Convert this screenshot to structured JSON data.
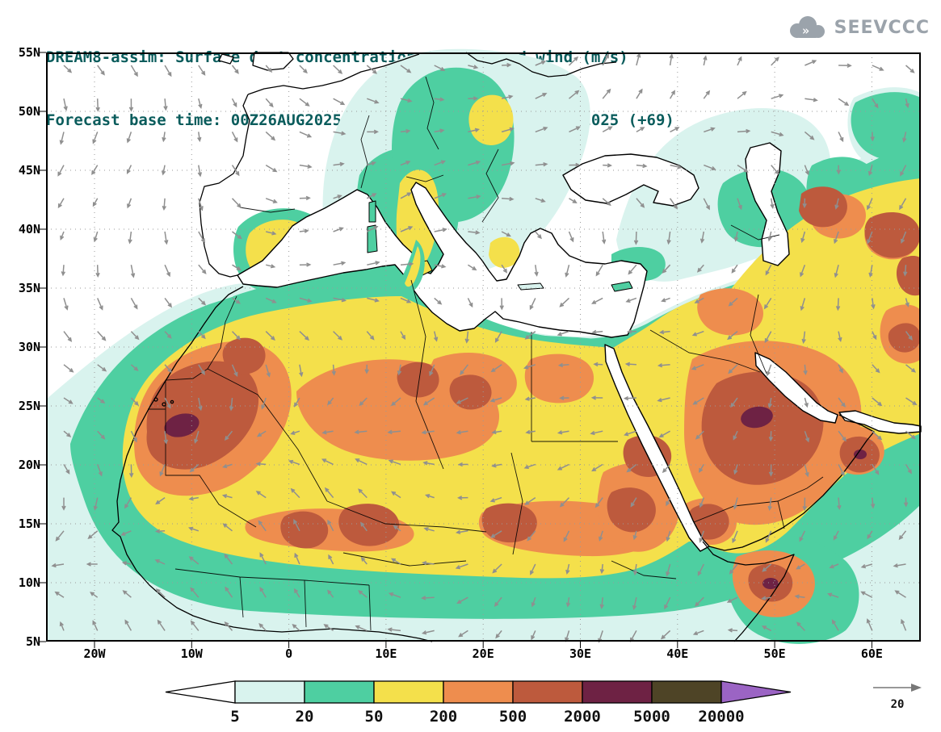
{
  "header": {
    "title_line1": "DREAM8-assim: Surface dust concentration (μg/m³) and wind (m/s)",
    "title_line2": "Forecast base time: 00Z26AUG2025      valid time: 21Z28AUG2025 (+69)",
    "title_color": "#0a5c5c",
    "logo_text": "SEEVCCC",
    "logo_color": "#9ba3ab"
  },
  "chart_data": {
    "type": "heatmap",
    "title": "DREAM8-assim: Surface dust concentration (μg/m³) and wind (m/s)",
    "variable": "Surface dust concentration",
    "units": "μg/m³",
    "wind_units": "m/s",
    "forecast_base_time": "00Z26AUG2025",
    "valid_time": "21Z28AUG2025",
    "forecast_hour": "+69",
    "x_ticks": [
      "20W",
      "10W",
      "0",
      "10E",
      "20E",
      "30E",
      "40E",
      "50E",
      "60E"
    ],
    "y_ticks": [
      "55N",
      "50N",
      "45N",
      "40N",
      "35N",
      "30N",
      "25N",
      "20N",
      "15N",
      "10N",
      "5N"
    ],
    "lon_range": [
      -25,
      65
    ],
    "lat_range": [
      5,
      55
    ],
    "contour_levels": [
      5,
      20,
      50,
      200,
      500,
      2000,
      5000,
      20000
    ],
    "level_colors": [
      "#ffffff",
      "#d9f3ee",
      "#4ecfa1",
      "#f4e04b",
      "#ee8d4e",
      "#bd5a3d",
      "#6e2244",
      "#4e4426",
      "#9b64c4"
    ],
    "wind_reference_value": 20,
    "legend_position": "bottom",
    "grid": "dotted",
    "map_region": "North Africa, Europe, Middle East"
  },
  "colorbar": {
    "labels": [
      "5",
      "20",
      "50",
      "200",
      "500",
      "2000",
      "5000",
      "20000"
    ]
  },
  "wind_ref": {
    "label": "20"
  },
  "map": {
    "sea_color": "#ffffff",
    "coast_color": "#000000",
    "arrow_color": "#8f8f8f"
  }
}
